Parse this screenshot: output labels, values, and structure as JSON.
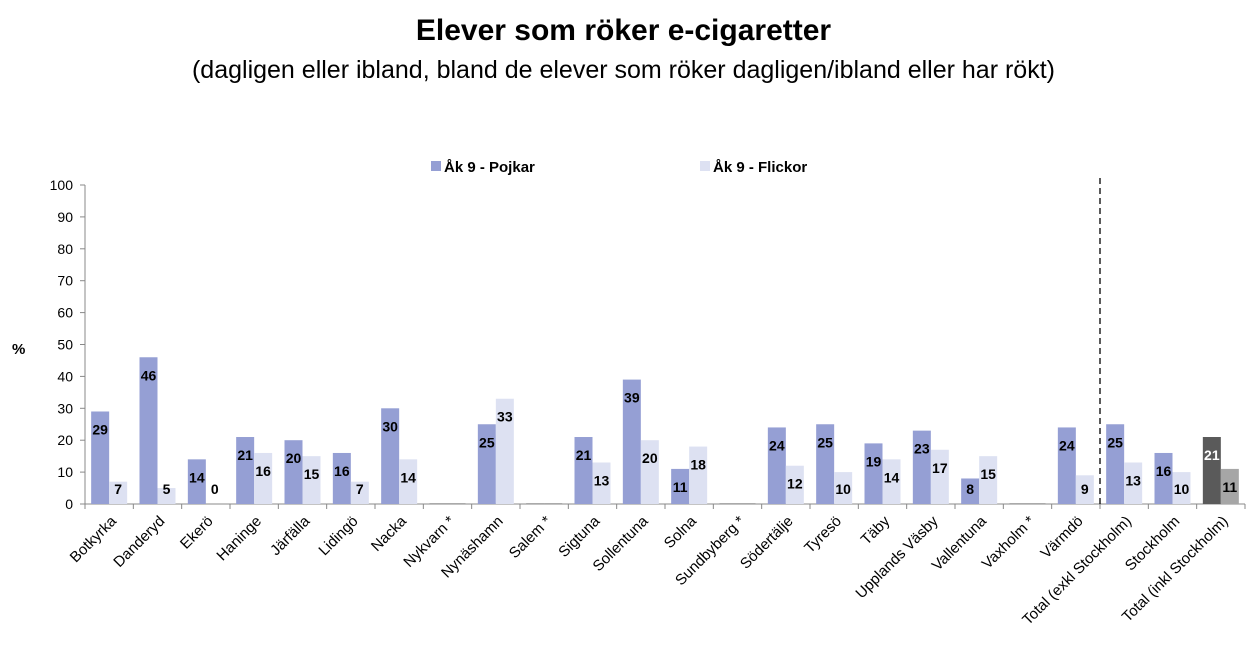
{
  "chart_data": {
    "type": "bar",
    "title": "Elever som röker e-cigaretter",
    "subtitle": "(dagligen eller ibland, bland de elever som röker dagligen/ibland eller har rökt)",
    "ylabel": "%",
    "ylim": [
      0,
      100
    ],
    "yticks": [
      "0",
      "10",
      "20",
      "30",
      "40",
      "50",
      "60",
      "70",
      "80",
      "90",
      "100"
    ],
    "legend_position": "top-center",
    "categories": [
      "Botkyrka",
      "Danderyd",
      "Ekerö",
      "Haninge",
      "Järfälla",
      "Lidingö",
      "Nacka",
      "Nykvarn *",
      "Nynäshamn",
      "Salem *",
      "Sigtuna",
      "Sollentuna",
      "Solna",
      "Sundbyberg *",
      "Södertälje",
      "Tyresö",
      "Täby",
      "Upplands Väsby",
      "Vallentuna",
      "Vaxholm *",
      "Värmdö",
      "Total (exkl Stockholm)",
      "Stockholm",
      "Total (inkl Stockholm)"
    ],
    "series": [
      {
        "name": "Åk 9 - Pojkar",
        "color": "#959fd4",
        "values": [
          29,
          46,
          14,
          21,
          20,
          16,
          30,
          null,
          25,
          null,
          21,
          39,
          11,
          null,
          24,
          25,
          19,
          23,
          8,
          null,
          24,
          25,
          16,
          21
        ],
        "labels": [
          "29",
          "46",
          "14",
          "21",
          "20",
          "16",
          "30",
          "",
          "25",
          "",
          "21",
          "39",
          "11",
          "",
          "24",
          "25",
          "19",
          "23",
          "8",
          "",
          "24",
          "25",
          "16",
          "21"
        ]
      },
      {
        "name": "Åk 9 - Flickor",
        "color": "#dde1f2",
        "values": [
          7,
          5,
          0,
          16,
          15,
          7,
          14,
          null,
          33,
          null,
          13,
          20,
          18,
          null,
          12,
          10,
          14,
          17,
          15,
          null,
          9,
          13,
          10,
          11
        ],
        "labels": [
          "7",
          "5",
          "0",
          "16",
          "15",
          "7",
          "14",
          "",
          "33",
          "",
          "13",
          "20",
          "18",
          "",
          "12",
          "10",
          "14",
          "17",
          "15",
          "",
          "9",
          "13",
          "10",
          "11"
        ]
      }
    ],
    "highlight": {
      "category": "Total (inkl Stockholm)",
      "colors": [
        "#5a5a5a",
        "#a6a6a6"
      ],
      "label_colors": [
        "#ffffff",
        "#000000"
      ]
    },
    "reference_line": {
      "style": "dashed",
      "after_category": "Värmdö"
    }
  }
}
